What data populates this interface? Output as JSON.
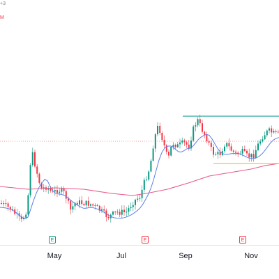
{
  "header": {
    "symbol_fragment": "+3",
    "indicator_fragment": "M"
  },
  "colors": {
    "up": "#089981",
    "down": "#f23645",
    "ma_fast": "#5b7fe6",
    "ma_slow": "#e8578a",
    "resistance": "#26a69a",
    "support": "#f5c518",
    "price_line": "#f23645"
  },
  "x_axis": {
    "months": [
      "May",
      "Jul",
      "Sep",
      "Nov"
    ]
  },
  "events": [
    {
      "type": "dividend",
      "glyph": "E"
    },
    {
      "type": "earnings",
      "glyph": "E"
    },
    {
      "type": "earnings",
      "glyph": "E"
    }
  ]
}
